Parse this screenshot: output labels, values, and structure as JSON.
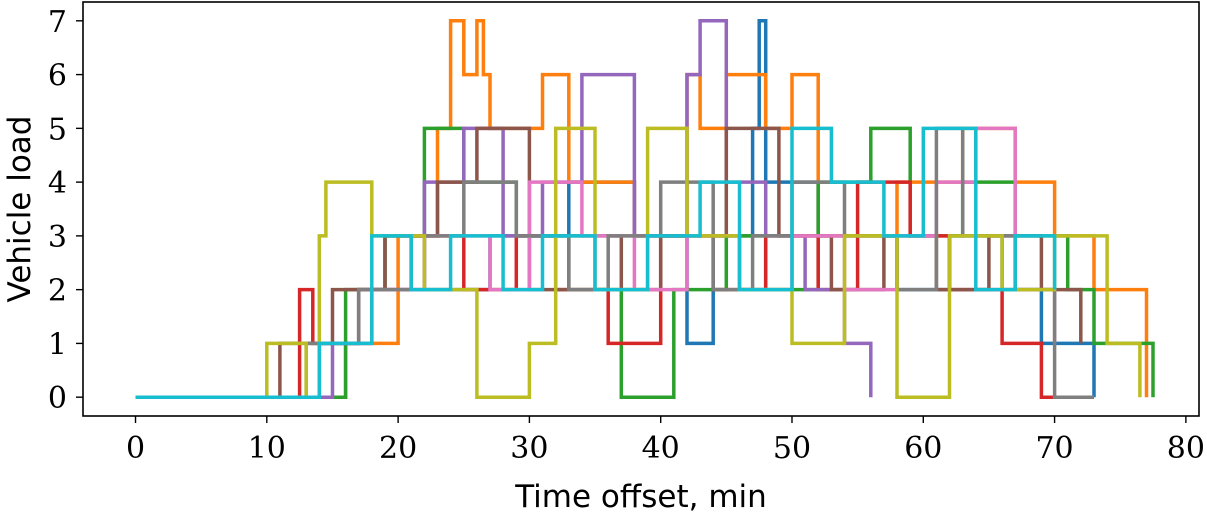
{
  "chart_data": {
    "type": "line",
    "xlabel": "Time offset, min",
    "ylabel": "Vehicle load",
    "xlim": [
      -4,
      81
    ],
    "ylim": [
      -0.35,
      7.35
    ],
    "xticks": [
      0,
      10,
      20,
      30,
      40,
      50,
      60,
      70,
      80
    ],
    "yticks": [
      0,
      1,
      2,
      3,
      4,
      5,
      6,
      7
    ],
    "grid": false,
    "legend": "none",
    "step": "post",
    "series": [
      {
        "color": "#1f77b4",
        "x": [
          0,
          14,
          17,
          19,
          22,
          27,
          33,
          38,
          42,
          44,
          47,
          47.5,
          48,
          52,
          58,
          62,
          66,
          69,
          73
        ],
        "y": [
          0,
          1,
          2,
          3,
          2,
          3,
          4,
          3,
          1,
          3,
          5,
          7,
          4,
          3,
          2,
          3,
          2,
          1,
          0
        ]
      },
      {
        "color": "#ff7f0e",
        "x": [
          0,
          16,
          20,
          23,
          24,
          25,
          26,
          26.5,
          27,
          31,
          33,
          38,
          42,
          43,
          45,
          48,
          50,
          52,
          58,
          63,
          67,
          70,
          73,
          77
        ],
        "y": [
          0,
          1,
          3,
          5,
          7,
          6,
          7,
          6,
          5,
          6,
          4,
          3,
          6,
          5,
          6,
          5,
          6,
          3,
          4,
          5,
          4,
          3,
          2,
          0
        ]
      },
      {
        "color": "#2ca02c",
        "x": [
          0,
          16,
          19,
          22,
          25,
          29,
          33,
          37,
          41,
          45,
          48,
          52,
          56,
          59,
          63,
          67,
          71,
          73,
          77.5
        ],
        "y": [
          0,
          2,
          3,
          5,
          4,
          3,
          2,
          0,
          2,
          3,
          2,
          4,
          5,
          3,
          4,
          3,
          2,
          1,
          0
        ]
      },
      {
        "color": "#d62728",
        "x": [
          0,
          12.5,
          13.5,
          17,
          21,
          25,
          29,
          32,
          36,
          40,
          44,
          48,
          52,
          55,
          59,
          62,
          66,
          69,
          72
        ],
        "y": [
          0,
          2,
          1,
          2,
          3,
          2,
          3,
          2,
          1,
          3,
          2,
          3,
          2,
          4,
          3,
          2,
          1,
          0,
          0
        ]
      },
      {
        "color": "#9467bd",
        "x": [
          0,
          15,
          18,
          22,
          25,
          28,
          31,
          34,
          38,
          42,
          43,
          45,
          48,
          51,
          54,
          56
        ],
        "y": [
          0,
          1,
          2,
          4,
          5,
          3,
          4,
          6,
          3,
          6,
          7,
          4,
          3,
          2,
          1,
          0
        ]
      },
      {
        "color": "#8c564b",
        "x": [
          0,
          11,
          15,
          19,
          23,
          26,
          30,
          33,
          37,
          40,
          45,
          49,
          53,
          57,
          61,
          65,
          69,
          72
        ],
        "y": [
          0,
          1,
          2,
          3,
          4,
          5,
          2,
          3,
          2,
          3,
          5,
          3,
          2,
          3,
          2,
          3,
          2,
          1
        ]
      },
      {
        "color": "#e377c2",
        "x": [
          0,
          14,
          18,
          22,
          27,
          30,
          34,
          38,
          42,
          46,
          50,
          54,
          58,
          61,
          64,
          67,
          70
        ],
        "y": [
          0,
          1,
          2,
          3,
          2,
          4,
          3,
          2,
          3,
          2,
          3,
          2,
          3,
          4,
          5,
          2,
          1
        ]
      },
      {
        "color": "#7f7f7f",
        "x": [
          0,
          13,
          17,
          21,
          25,
          29,
          33,
          36,
          40,
          44,
          47,
          50,
          54,
          58,
          61,
          63,
          67,
          70,
          73
        ],
        "y": [
          0,
          1,
          2,
          3,
          4,
          3,
          2,
          3,
          4,
          2,
          3,
          4,
          3,
          2,
          5,
          3,
          2,
          0,
          0
        ]
      },
      {
        "color": "#bcbd22",
        "x": [
          0,
          10,
          13,
          14,
          14.5,
          18,
          22,
          26,
          30,
          32,
          35,
          39,
          42,
          46,
          50,
          54,
          58,
          62,
          66,
          70,
          74,
          76.5
        ],
        "y": [
          0,
          1,
          0,
          3,
          4,
          3,
          2,
          0,
          1,
          5,
          2,
          5,
          3,
          2,
          1,
          3,
          0,
          3,
          2,
          3,
          1,
          0
        ]
      },
      {
        "color": "#17becf",
        "x": [
          0,
          14,
          18,
          21,
          24,
          28,
          31,
          35,
          39,
          43,
          46,
          50,
          53,
          57,
          60,
          64,
          67,
          70
        ],
        "y": [
          0,
          1,
          3,
          2,
          3,
          2,
          3,
          2,
          3,
          4,
          2,
          5,
          4,
          3,
          5,
          2,
          3,
          2
        ]
      }
    ]
  }
}
